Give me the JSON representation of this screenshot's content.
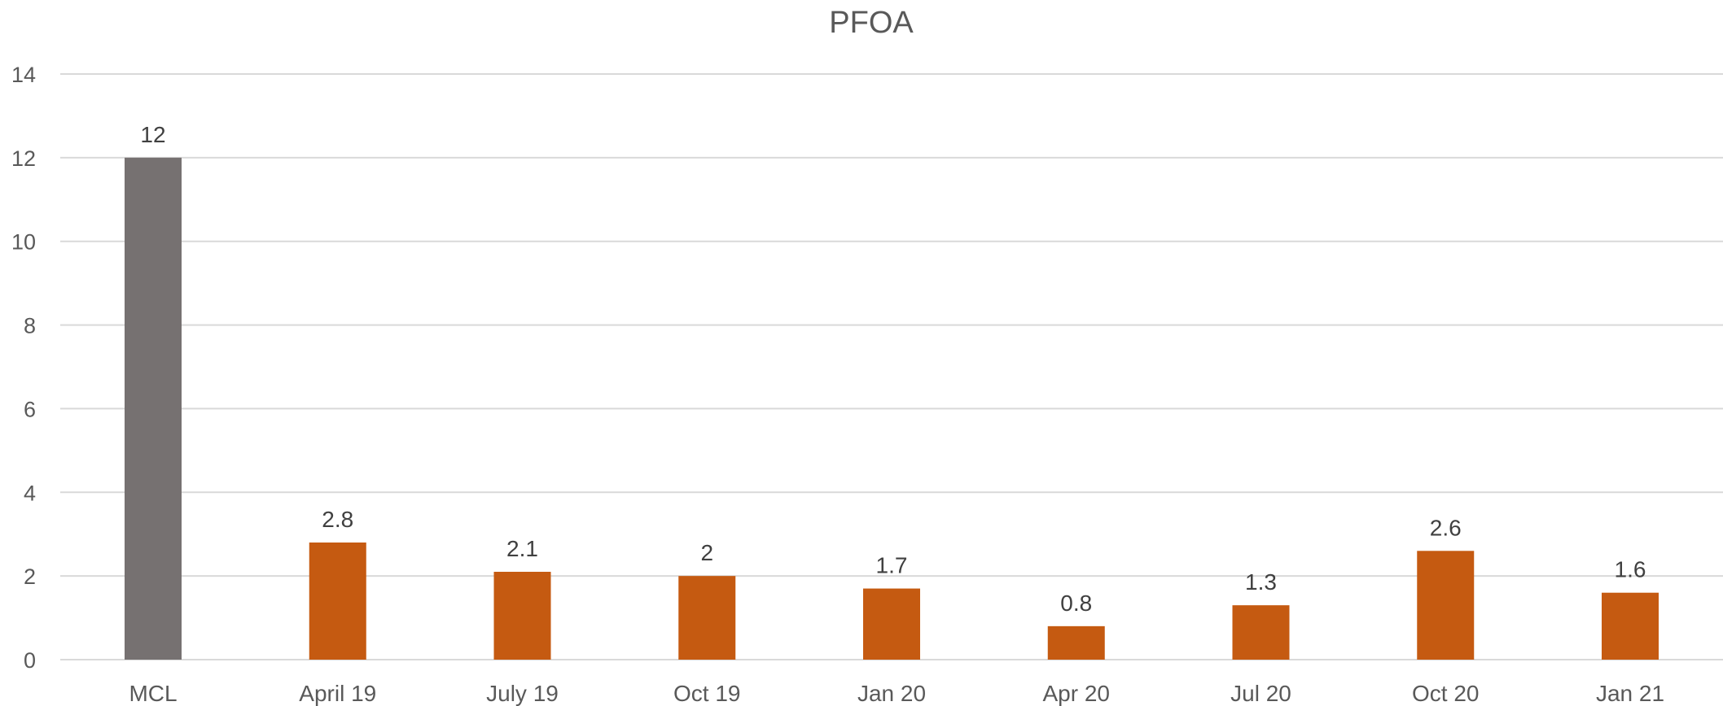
{
  "chart_data": {
    "type": "bar",
    "title": "PFOA",
    "categories": [
      "MCL",
      "April 19",
      "July 19",
      "Oct 19",
      "Jan 20",
      "Apr 20",
      "Jul 20",
      "Oct 20",
      "Jan 21"
    ],
    "values": [
      12,
      2.8,
      2.1,
      2,
      1.7,
      0.8,
      1.3,
      2.6,
      1.6
    ],
    "bar_colors": [
      "#767171",
      "#c55a11",
      "#c55a11",
      "#c55a11",
      "#c55a11",
      "#c55a11",
      "#c55a11",
      "#c55a11",
      "#c55a11"
    ],
    "ylim": [
      0,
      14
    ],
    "yticks": [
      0,
      2,
      4,
      6,
      8,
      10,
      12,
      14
    ],
    "data_labels": [
      "12",
      "2.8",
      "2.1",
      "2",
      "1.7",
      "0.8",
      "1.3",
      "2.6",
      "1.6"
    ],
    "xlabel": "",
    "ylabel": "",
    "grid": true,
    "legend": "none"
  }
}
